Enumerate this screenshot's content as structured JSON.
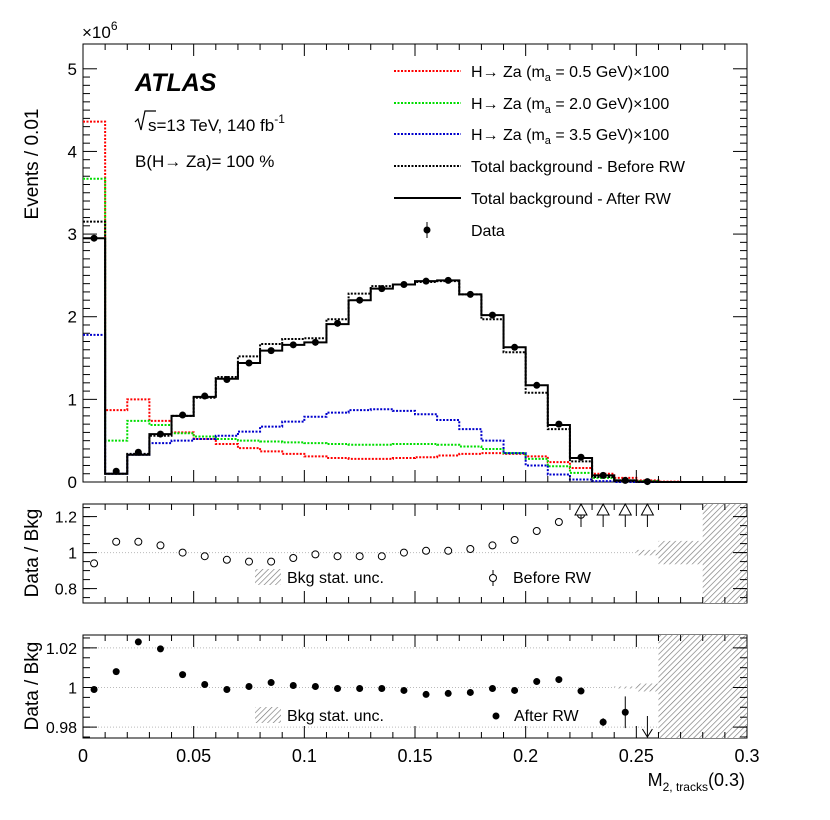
{
  "chart_data": [
    {
      "panel": "main",
      "type": "histogram",
      "experiment": "ATLAS",
      "energy_text": "s=13 TeV, 140 fb",
      "lumi_exp": "-1",
      "br_text": "B(H→ Za)= 100 %",
      "ylabel": "Events / 0.01",
      "y_multiplier": "×10",
      "y_multiplier_exp": "6",
      "ylim": [
        0,
        5.3
      ],
      "yticks": [
        0,
        1,
        2,
        3,
        4,
        5
      ],
      "ytick_labels": [
        "0",
        "1",
        "2",
        "3",
        "4",
        "5"
      ],
      "bin_edges": [
        0,
        0.01,
        0.02,
        0.03,
        0.04,
        0.05,
        0.06,
        0.07,
        0.08,
        0.09,
        0.1,
        0.11,
        0.12,
        0.13,
        0.14,
        0.15,
        0.16,
        0.17,
        0.18,
        0.19,
        0.2,
        0.21,
        0.22,
        0.23,
        0.24,
        0.25,
        0.26,
        0.27,
        0.28,
        0.29,
        0.3
      ],
      "series": [
        {
          "name": "H→ Za (m_a = 0.5 GeV)×100",
          "legend_text": "H→ Za (m",
          "legend_sub": "a",
          "legend_tail": " = 0.5 GeV)×100",
          "style": "dotted",
          "color": "#ff0000",
          "values": [
            4.36,
            0.87,
            1.0,
            0.74,
            0.6,
            0.52,
            0.46,
            0.41,
            0.37,
            0.34,
            0.31,
            0.29,
            0.28,
            0.28,
            0.29,
            0.3,
            0.32,
            0.34,
            0.35,
            0.34,
            0.31,
            0.24,
            0.17,
            0.1,
            0.05,
            0.02,
            0.005,
            0.0,
            0.0,
            0.0
          ]
        },
        {
          "name": "H→ Za (m_a = 2.0 GeV)×100",
          "legend_text": "H→ Za (m",
          "legend_sub": "a",
          "legend_tail": " = 2.0 GeV)×100",
          "style": "dotted",
          "color": "#00dd00",
          "values": [
            3.67,
            0.5,
            0.74,
            0.69,
            0.59,
            0.55,
            0.52,
            0.5,
            0.49,
            0.48,
            0.47,
            0.46,
            0.45,
            0.45,
            0.46,
            0.46,
            0.45,
            0.43,
            0.4,
            0.35,
            0.28,
            0.19,
            0.11,
            0.05,
            0.02,
            0.01,
            0.0,
            0.0,
            0.0,
            0.0
          ]
        },
        {
          "name": "H→ Za (m_a = 3.5 GeV)×100",
          "legend_text": "H→ Za (m",
          "legend_sub": "a",
          "legend_tail": " = 3.5 GeV)×100",
          "style": "dotted",
          "color": "#0000cc",
          "values": [
            1.78,
            0.1,
            0.33,
            0.47,
            0.5,
            0.52,
            0.56,
            0.61,
            0.67,
            0.73,
            0.79,
            0.84,
            0.87,
            0.88,
            0.86,
            0.82,
            0.75,
            0.64,
            0.5,
            0.35,
            0.2,
            0.09,
            0.03,
            0.01,
            0.0,
            0.0,
            0.0,
            0.0,
            0.0,
            0.0
          ]
        },
        {
          "name": "Total background - Before RW",
          "style": "dotted",
          "color": "#000000",
          "values": [
            3.15,
            0.1,
            0.34,
            0.56,
            0.8,
            1.02,
            1.27,
            1.52,
            1.67,
            1.73,
            1.74,
            1.97,
            2.28,
            2.37,
            2.39,
            2.42,
            2.43,
            2.27,
            1.97,
            1.57,
            1.08,
            0.64,
            0.25,
            0.06,
            0.01,
            0.0,
            0.0,
            0.0,
            0.0,
            0.0
          ]
        },
        {
          "name": "Total background - After RW",
          "style": "solid",
          "color": "#000000",
          "values": [
            2.95,
            0.1,
            0.33,
            0.58,
            0.8,
            1.03,
            1.25,
            1.44,
            1.59,
            1.66,
            1.69,
            1.91,
            2.2,
            2.34,
            2.39,
            2.43,
            2.44,
            2.27,
            2.02,
            1.63,
            1.17,
            0.69,
            0.29,
            0.08,
            0.02,
            0.005,
            0.0,
            0.0,
            0.0,
            0.0
          ]
        }
      ],
      "data": {
        "name": "Data",
        "x": [
          0.005,
          0.015,
          0.025,
          0.035,
          0.045,
          0.055,
          0.065,
          0.075,
          0.085,
          0.095,
          0.105,
          0.115,
          0.125,
          0.135,
          0.145,
          0.155,
          0.165,
          0.175,
          0.185,
          0.195,
          0.205,
          0.215,
          0.225,
          0.235,
          0.245,
          0.255
        ],
        "y": [
          2.95,
          0.13,
          0.36,
          0.58,
          0.81,
          1.04,
          1.24,
          1.44,
          1.59,
          1.66,
          1.69,
          1.92,
          2.2,
          2.34,
          2.39,
          2.43,
          2.44,
          2.27,
          2.02,
          1.63,
          1.17,
          0.7,
          0.3,
          0.08,
          0.02,
          0.005
        ]
      }
    },
    {
      "panel": "ratio_before",
      "type": "scatter",
      "ylabel": "Data / Bkg",
      "ylim": [
        0.72,
        1.27
      ],
      "yticks": [
        0.8,
        1,
        1.2
      ],
      "ytick_labels": [
        "0.8",
        "1",
        "1.2"
      ],
      "band_label": "Bkg stat. unc.",
      "marker_label": "Before RW",
      "band": {
        "x_edges": [
          0.25,
          0.26,
          0.28
        ],
        "half_width": [
          0.015,
          0.065,
          0.3
        ]
      },
      "x": [
        0.005,
        0.015,
        0.025,
        0.035,
        0.045,
        0.055,
        0.065,
        0.075,
        0.085,
        0.095,
        0.105,
        0.115,
        0.125,
        0.135,
        0.145,
        0.155,
        0.165,
        0.175,
        0.185,
        0.195,
        0.205,
        0.215,
        0.225
      ],
      "y": [
        0.94,
        1.06,
        1.06,
        1.04,
        1.0,
        0.98,
        0.96,
        0.95,
        0.95,
        0.97,
        0.99,
        0.98,
        0.98,
        0.98,
        1.0,
        1.01,
        1.01,
        1.02,
        1.04,
        1.07,
        1.12,
        1.17,
        1.21
      ],
      "overflow_up_x": [
        0.225,
        0.235,
        0.245,
        0.255
      ]
    },
    {
      "panel": "ratio_after",
      "type": "scatter",
      "ylabel": "Data / Bkg",
      "xlabel": "M",
      "xlabel_sub": "2, tracks",
      "xlabel_tail": "(0.3)",
      "ylim": [
        0.9745,
        1.0265
      ],
      "yticks": [
        0.98,
        1,
        1.02
      ],
      "ytick_labels": [
        "0.98",
        "1",
        "1.02"
      ],
      "band_label": "Bkg stat. unc.",
      "marker_label": "After RW",
      "band": {
        "x_edges": [
          0.24,
          0.25,
          0.26,
          0.28
        ],
        "half_width": [
          0.0005,
          0.002,
          0.03,
          0.03
        ]
      },
      "x": [
        0.005,
        0.015,
        0.025,
        0.035,
        0.045,
        0.055,
        0.065,
        0.075,
        0.085,
        0.095,
        0.105,
        0.115,
        0.125,
        0.135,
        0.145,
        0.155,
        0.165,
        0.175,
        0.185,
        0.195,
        0.205,
        0.215,
        0.225,
        0.235,
        0.245
      ],
      "y": [
        0.999,
        1.008,
        1.023,
        1.0195,
        1.0065,
        1.0015,
        0.999,
        1.0005,
        1.0025,
        1.001,
        1.0005,
        0.9995,
        0.9995,
        0.9995,
        0.9985,
        0.9965,
        0.997,
        0.9975,
        0.9995,
        0.9985,
        1.003,
        1.004,
        0.9982,
        0.9825,
        0.9875
      ],
      "yerr": [
        0,
        0.001,
        0,
        0,
        0,
        0,
        0,
        0,
        0,
        0,
        0,
        0,
        0,
        0,
        0,
        0,
        0,
        0,
        0,
        0,
        0,
        0.001,
        0.001,
        0.002,
        0.008
      ],
      "overflow_down_x": [
        0.255
      ],
      "xlim": [
        0,
        0.3
      ],
      "xticks": [
        0,
        0.05,
        0.1,
        0.15,
        0.2,
        0.25,
        0.3
      ],
      "xtick_labels": [
        "0",
        "0.05",
        "0.1",
        "0.15",
        "0.2",
        "0.25",
        "0.3"
      ]
    }
  ]
}
